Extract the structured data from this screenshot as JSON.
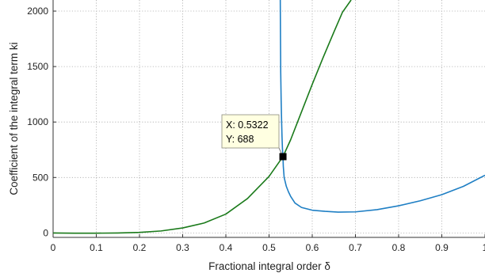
{
  "chart_data": {
    "type": "line",
    "title": "",
    "xlabel": "Fractional integral order δ",
    "ylabel": "Coefficient of the integral term ki",
    "xlim": [
      0,
      1
    ],
    "ylim": [
      -40,
      2100
    ],
    "x_ticks": [
      0,
      0.1,
      0.2,
      0.3,
      0.4,
      0.5,
      0.6,
      0.7,
      0.8,
      0.9,
      1
    ],
    "x_tick_labels": [
      "0",
      "0.1",
      "0.2",
      "0.3",
      "0.4",
      "0.5",
      "0.6",
      "0.7",
      "0.8",
      "0.9",
      "1"
    ],
    "y_ticks": [
      0,
      500,
      1000,
      1500,
      2000
    ],
    "y_tick_labels": [
      "0",
      "500",
      "1000",
      "1500",
      "2000"
    ],
    "grid": true,
    "grid_style": "dotted",
    "series": [
      {
        "color": "#1f7fc4",
        "x": [
          0.526,
          0.5265,
          0.527,
          0.528,
          0.529,
          0.53,
          0.531,
          0.5322,
          0.533,
          0.535,
          0.54,
          0.545,
          0.55,
          0.56,
          0.575,
          0.6,
          0.63,
          0.66,
          0.7,
          0.75,
          0.8,
          0.85,
          0.9,
          0.95,
          1.0
        ],
        "y": [
          2100,
          1750,
          1450,
          1200,
          1020,
          870,
          760,
          688,
          600,
          500,
          420,
          370,
          330,
          270,
          230,
          205,
          195,
          188,
          190,
          210,
          245,
          290,
          345,
          420,
          520
        ]
      },
      {
        "color": "#1a7a1a",
        "x": [
          0.0,
          0.05,
          0.1,
          0.15,
          0.2,
          0.25,
          0.3,
          0.35,
          0.4,
          0.45,
          0.5,
          0.5322,
          0.55,
          0.575,
          0.6,
          0.625,
          0.65,
          0.67,
          0.69
        ],
        "y": [
          0,
          -2,
          -2,
          0,
          5,
          18,
          45,
          90,
          170,
          310,
          510,
          688,
          840,
          1090,
          1340,
          1580,
          1810,
          1990,
          2100
        ]
      }
    ],
    "datatip": {
      "x": 0.5322,
      "y": 688,
      "x_text": "X: 0.5322",
      "y_text": "Y: 688"
    }
  }
}
